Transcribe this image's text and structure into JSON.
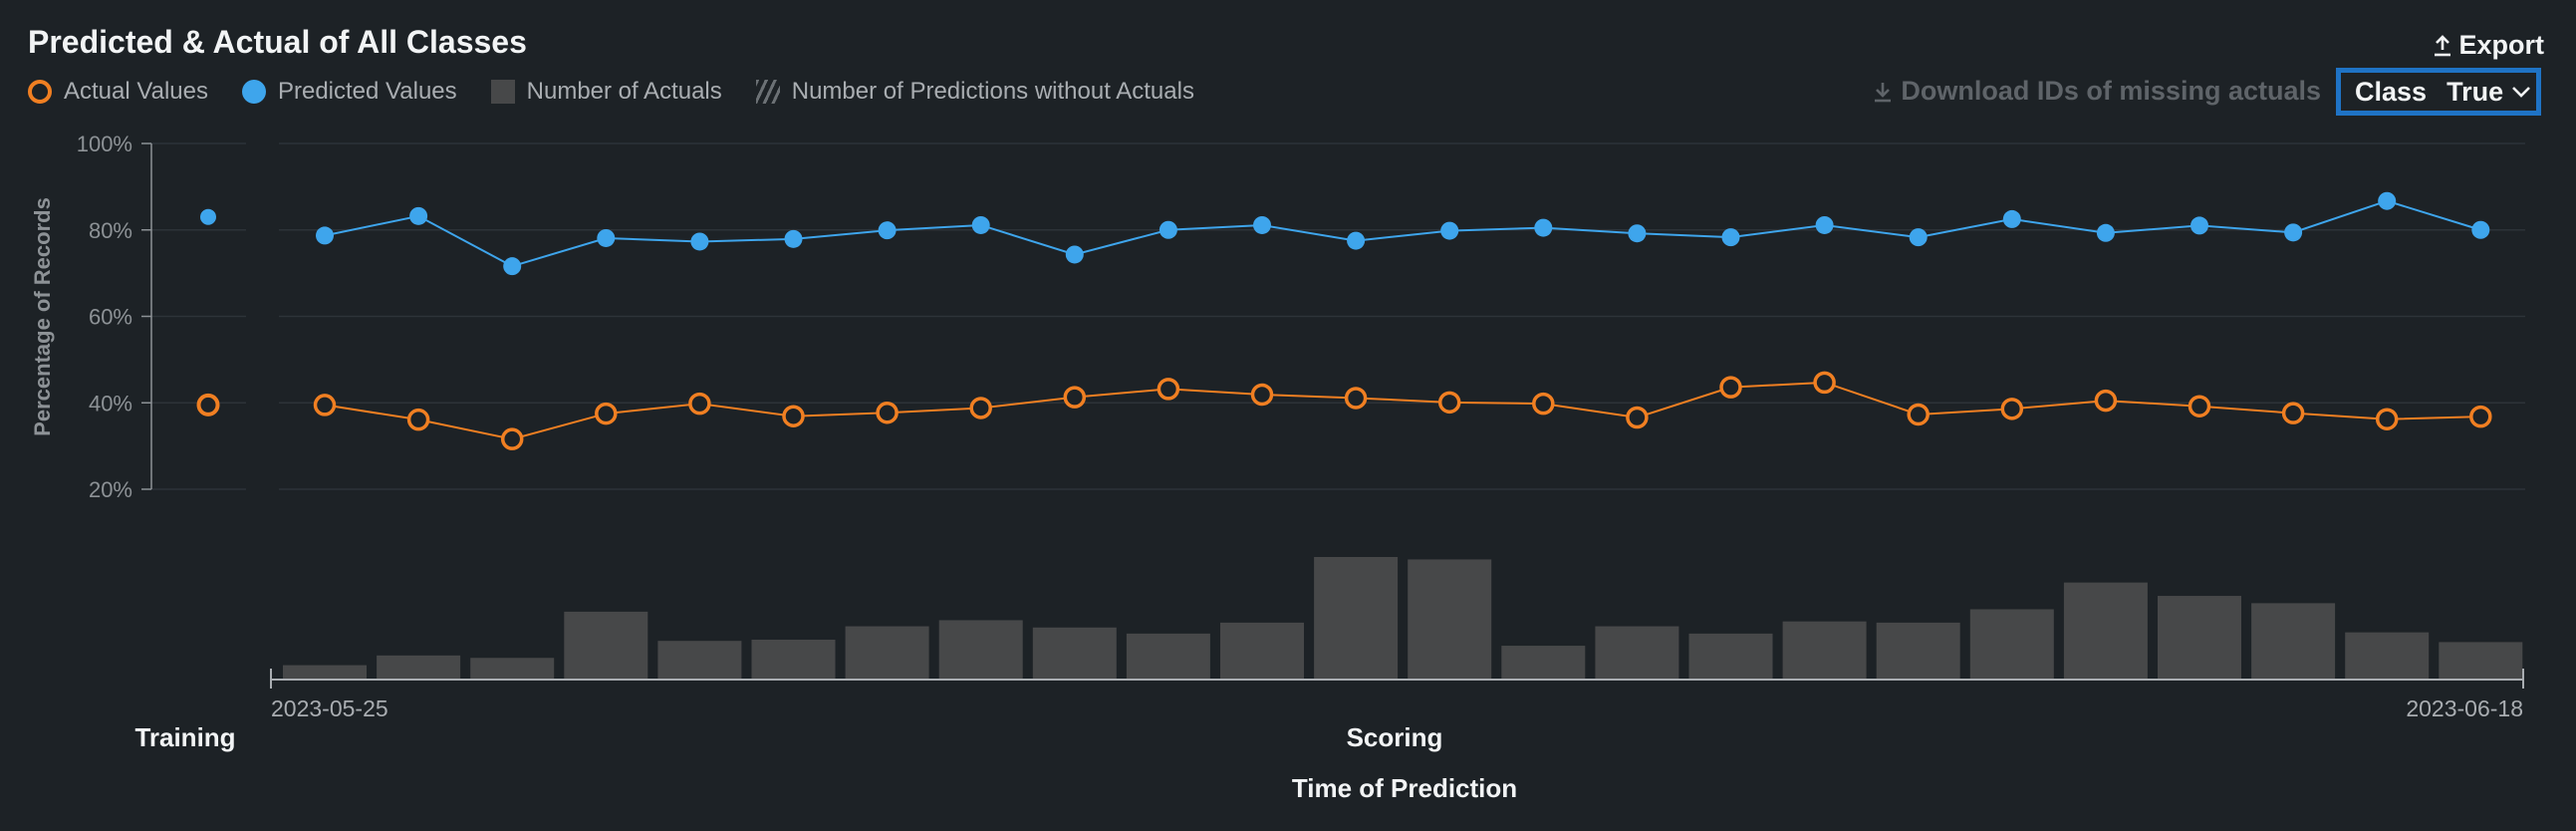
{
  "header": {
    "title": "Predicted & Actual of All Classes",
    "export_label": "Export",
    "download_label": "Download IDs of missing actuals",
    "class_label": "Class",
    "class_value": "True"
  },
  "legend": {
    "actual": "Actual Values",
    "predicted": "Predicted Values",
    "num_actuals": "Number of Actuals",
    "num_pred_without_actuals": "Number of Predictions without Actuals"
  },
  "colors": {
    "actual": "#f07f22",
    "predicted": "#3ea5ec",
    "bars": "#474849",
    "background": "#1d2226",
    "highlight": "#1f73c5"
  },
  "chart_data": {
    "type": "line",
    "ylabel": "Percentage of Records",
    "xlabel": "Time of Prediction",
    "ylim": [
      20,
      100
    ],
    "y_ticks": [
      "100%",
      "80%",
      "60%",
      "40%",
      "20%"
    ],
    "x_start_label": "2023-05-25",
    "x_end_label": "2023-06-18",
    "section_labels": {
      "training": "Training",
      "scoring": "Scoring"
    },
    "training": {
      "predicted": 83,
      "actual": 39.5
    },
    "series": [
      {
        "name": "Predicted Values",
        "values": [
          78.7,
          83.2,
          71.6,
          78.1,
          77.3,
          77.9,
          79.9,
          81.1,
          74.3,
          80.0,
          81.1,
          77.5,
          79.8,
          80.5,
          79.2,
          78.3,
          81.1,
          78.3,
          82.5,
          79.3,
          81.0,
          79.4,
          86.7,
          80.0
        ]
      },
      {
        "name": "Actual Values",
        "values": [
          39.5,
          36.1,
          31.6,
          37.5,
          39.8,
          36.9,
          37.7,
          38.8,
          41.3,
          43.2,
          41.9,
          41.1,
          40.1,
          39.8,
          36.6,
          43.6,
          44.7,
          37.3,
          38.6,
          40.5,
          39.2,
          37.6,
          36.2,
          36.8
        ]
      }
    ],
    "bar_series": {
      "name": "Number of Actuals",
      "relative_values": [
        0.11,
        0.19,
        0.17,
        0.55,
        0.31,
        0.32,
        0.43,
        0.48,
        0.42,
        0.37,
        0.46,
        1.0,
        0.98,
        0.27,
        0.43,
        0.37,
        0.47,
        0.46,
        0.57,
        0.79,
        0.68,
        0.62,
        0.38,
        0.3
      ]
    },
    "grid": true
  }
}
